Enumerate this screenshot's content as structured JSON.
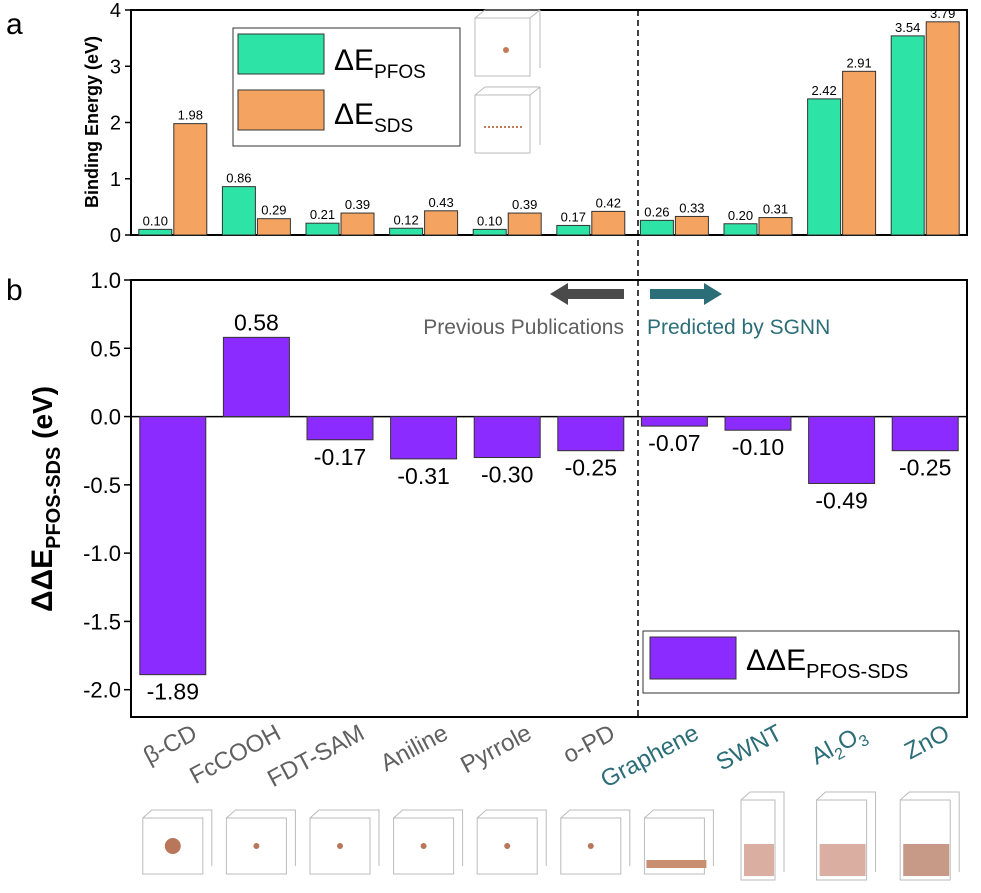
{
  "panel_a_label": "a",
  "panel_b_label": "b",
  "categories": [
    "β-CD",
    "FcCOOH",
    "FDT-SAM",
    "Aniline",
    "Pyrrole",
    "o-PD",
    "Graphene",
    "SWNT",
    "Al2O3",
    "ZnO"
  ],
  "previous_label": "Previous Publications",
  "predicted_label": "Predicted by SGNN",
  "colors": {
    "pfos": "#2EE3A6",
    "sds": "#F4A460",
    "diff": "#8C2BFF",
    "previous_text": "#606060",
    "predicted_text": "#2C6E78",
    "previous_arrow": "#4A4A4A",
    "predicted_arrow": "#2C6E78"
  },
  "chart_data": [
    {
      "type": "bar",
      "panel": "a",
      "ylabel": "Binding Energy (eV)",
      "ylim": [
        0,
        4
      ],
      "yticks": [
        "0",
        "1",
        "2",
        "3",
        "4"
      ],
      "series": [
        {
          "name": "ΔE",
          "name_sub": "PFOS",
          "values": [
            0.1,
            0.86,
            0.21,
            0.12,
            0.1,
            0.17,
            0.26,
            0.2,
            2.42,
            3.54
          ],
          "labels": [
            "0.10",
            "0.86",
            "0.21",
            "0.12",
            "0.10",
            "0.17",
            "0.26",
            "0.20",
            "2.42",
            "3.54"
          ]
        },
        {
          "name": "ΔE",
          "name_sub": "SDS",
          "values": [
            1.98,
            0.29,
            0.39,
            0.43,
            0.39,
            0.42,
            0.33,
            0.31,
            2.91,
            3.79
          ],
          "labels": [
            "1.98",
            "0.29",
            "0.39",
            "0.43",
            "0.39",
            "0.42",
            "0.33",
            "0.31",
            "2.91",
            "3.79"
          ]
        }
      ],
      "legend": "top-left"
    },
    {
      "type": "bar",
      "panel": "b",
      "ylabel": "ΔΔE",
      "ylabel_sub": "PFOS-SDS",
      "ylabel_unit": " (eV)",
      "ylim": [
        -2.2,
        1.0
      ],
      "yticks": [
        "1.0",
        "0.5",
        "0.0",
        "-0.5",
        "-1.0",
        "-1.5",
        "-2.0"
      ],
      "series": [
        {
          "name": "ΔΔE",
          "name_sub": "PFOS-SDS",
          "values": [
            -1.89,
            0.58,
            -0.17,
            -0.31,
            -0.3,
            -0.25,
            -0.07,
            -0.1,
            -0.49,
            -0.25
          ],
          "labels": [
            "-1.89",
            "0.58",
            "-0.17",
            "-0.31",
            "-0.30",
            "-0.25",
            "-0.07",
            "-0.10",
            "-0.49",
            "-0.25"
          ]
        }
      ],
      "legend": "bottom-right"
    }
  ]
}
